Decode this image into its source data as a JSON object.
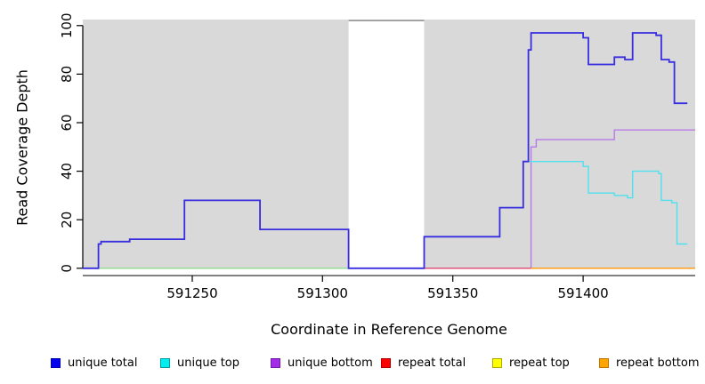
{
  "chart_data": {
    "type": "line",
    "subtype": "step-coverage",
    "title": "",
    "xlabel": "Coordinate in Reference Genome",
    "ylabel": "Read Coverage Depth",
    "xlim": [
      591208,
      591443
    ],
    "ylim": [
      -3,
      102.5
    ],
    "xticks": [
      591250,
      591300,
      591350,
      591400
    ],
    "yticks": [
      0,
      20,
      40,
      60,
      80,
      100
    ],
    "grid": false,
    "plot_bg": "#ffffff",
    "region_color": "#d9d9d9",
    "background_regions": [
      {
        "name": "covered-region-left",
        "x0": 591208,
        "x1": 591310
      },
      {
        "name": "covered-region-right",
        "x0": 591339,
        "x1": 591443
      }
    ],
    "gap_cap": {
      "x0": 591310,
      "x1": 591339,
      "y": 102.1,
      "color": "#8f8f8f"
    },
    "series": [
      {
        "name": "baseline",
        "color": "#8ed88e",
        "width": 1.3,
        "points": [
          [
            591208,
            0
          ],
          [
            591310,
            0
          ]
        ]
      },
      {
        "name": "unique bottom",
        "color": "#b879e8",
        "width": 1.4,
        "points": [
          [
            591310,
            0
          ],
          [
            591380,
            50
          ],
          [
            591382,
            53
          ],
          [
            591412,
            57
          ],
          [
            591443,
            57
          ]
        ]
      },
      {
        "name": "repeat total",
        "color": "#e04e6e",
        "width": 1.3,
        "points": [
          [
            591339,
            0
          ],
          [
            591380,
            0
          ]
        ]
      },
      {
        "name": "repeat top",
        "color": "#f0e626",
        "width": 1.3,
        "points": [
          [
            591380,
            0
          ],
          [
            591443,
            0
          ]
        ]
      },
      {
        "name": "repeat bottom",
        "color": "#ff9e1b",
        "width": 1.5,
        "points": [
          [
            591380,
            0
          ],
          [
            591443,
            0
          ]
        ]
      },
      {
        "name": "unique top",
        "color": "#4fe0ee",
        "width": 1.4,
        "points": [
          [
            591339,
            13
          ],
          [
            591368,
            25
          ],
          [
            591377,
            44
          ],
          [
            591400,
            42
          ],
          [
            591402,
            31
          ],
          [
            591412,
            30
          ],
          [
            591417,
            29
          ],
          [
            591419,
            40
          ],
          [
            591429,
            39
          ],
          [
            591430,
            28
          ],
          [
            591434,
            27
          ],
          [
            591436,
            10
          ],
          [
            591440,
            10
          ]
        ]
      },
      {
        "name": "unique total",
        "color": "#392de0",
        "width": 1.8,
        "points": [
          [
            591208,
            0
          ],
          [
            591214,
            10
          ],
          [
            591215,
            11
          ],
          [
            591226,
            12
          ],
          [
            591247,
            28
          ],
          [
            591276,
            16
          ],
          [
            591310,
            0
          ],
          [
            591339,
            13
          ],
          [
            591368,
            25
          ],
          [
            591377,
            44
          ],
          [
            591379,
            90
          ],
          [
            591380,
            97
          ],
          [
            591400,
            95
          ],
          [
            591402,
            84
          ],
          [
            591412,
            87
          ],
          [
            591416,
            86
          ],
          [
            591419,
            97
          ],
          [
            591428,
            96
          ],
          [
            591430,
            86
          ],
          [
            591433,
            85
          ],
          [
            591435,
            68
          ],
          [
            591440,
            68
          ]
        ]
      }
    ],
    "legend": {
      "position": "bottom",
      "items": [
        {
          "label": "unique total",
          "fill": "#0000f0",
          "border": "#0000b0"
        },
        {
          "label": "unique top",
          "fill": "#00eeee",
          "border": "#009aa0"
        },
        {
          "label": "unique bottom",
          "fill": "#a32ae8",
          "border": "#6f1da6"
        },
        {
          "label": "repeat total",
          "fill": "#ff0000",
          "border": "#b00000"
        },
        {
          "label": "repeat top",
          "fill": "#ffff00",
          "border": "#b0a800"
        },
        {
          "label": "repeat bottom",
          "fill": "#ffa500",
          "border": "#bf7300"
        }
      ]
    }
  }
}
